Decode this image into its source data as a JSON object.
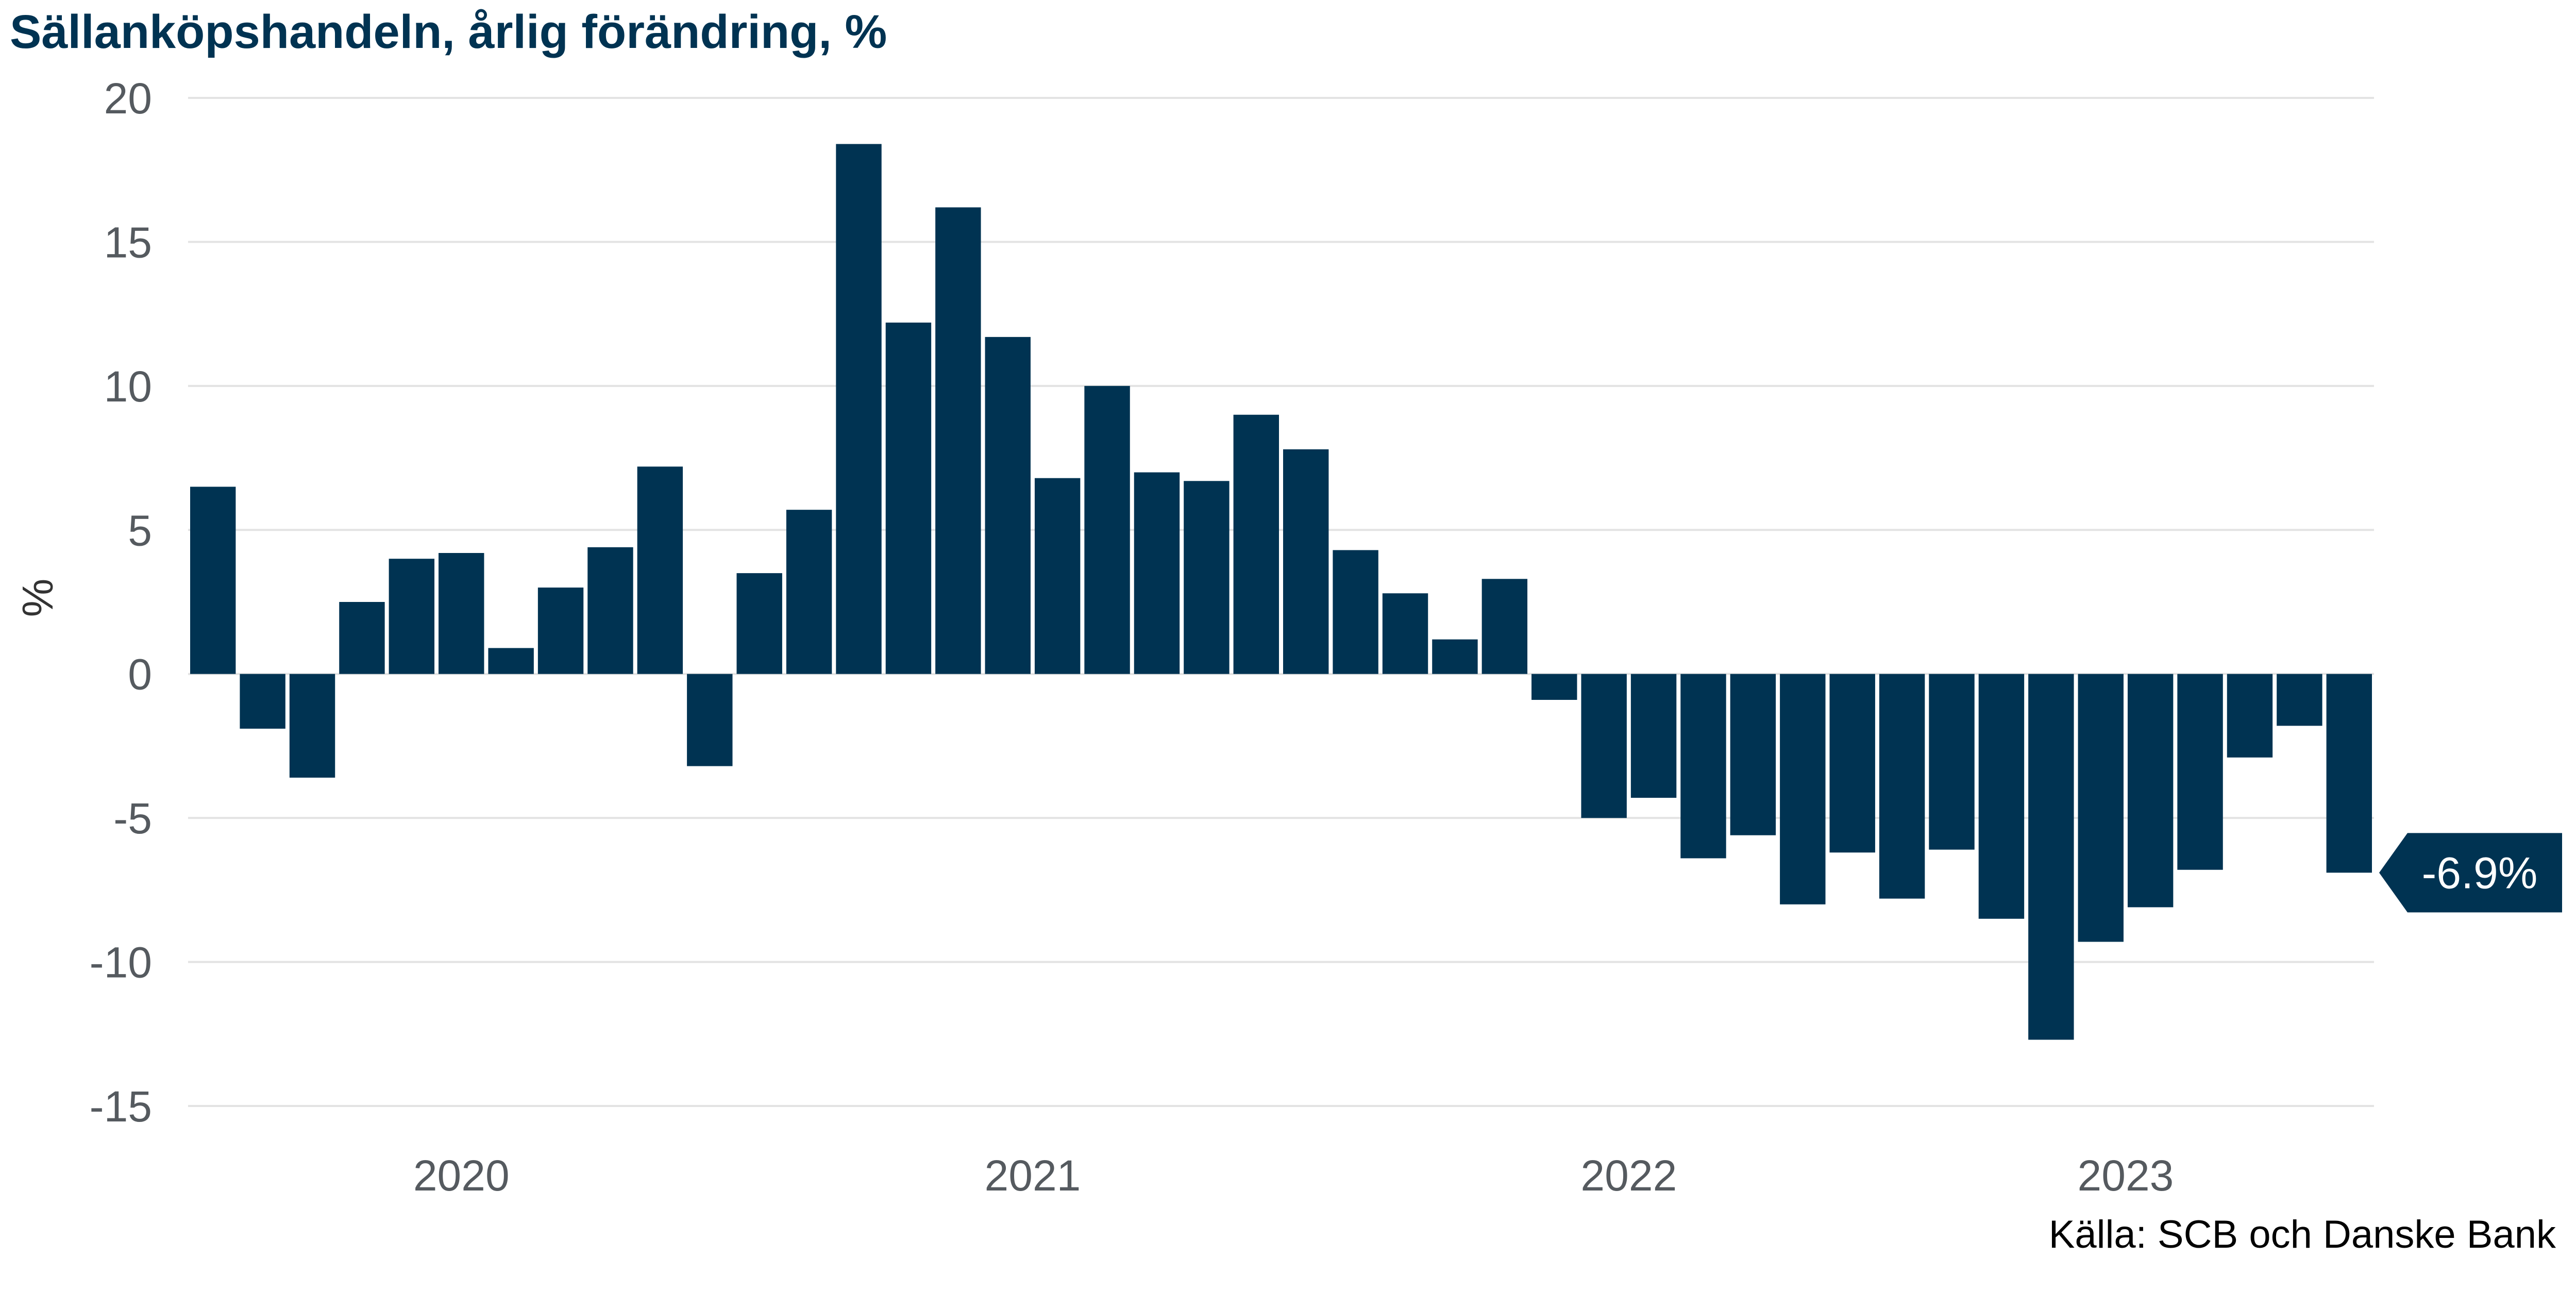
{
  "chart_data": {
    "type": "bar",
    "title": "Sällanköpshandeln, årlig förändring, %",
    "ylabel": "%",
    "xlabel": "",
    "source": "Källa: SCB och Danske Bank",
    "ylim": [
      -15,
      20
    ],
    "yticks": [
      20,
      15,
      10,
      5,
      0,
      -5,
      -10,
      -15
    ],
    "ytick_labels": [
      "20",
      "15",
      "10",
      "5",
      "0",
      "-5",
      "-10",
      "-15"
    ],
    "xtick_labels": [
      {
        "label": "2020",
        "at": 5.5
      },
      {
        "label": "2021",
        "at": 17
      },
      {
        "label": "2022",
        "at": 29
      },
      {
        "label": "2023",
        "at": 39
      }
    ],
    "grid": true,
    "bar_color": "#003352",
    "grid_color": "#e3e3e3",
    "values": [
      6.5,
      -1.9,
      -3.6,
      2.5,
      4.0,
      4.2,
      0.9,
      3.0,
      4.4,
      7.2,
      -3.2,
      3.5,
      5.7,
      18.4,
      12.2,
      16.2,
      11.7,
      6.8,
      10.0,
      7.0,
      6.7,
      9.0,
      7.8,
      4.3,
      2.8,
      1.2,
      3.3,
      -0.9,
      -5.0,
      -4.3,
      -6.4,
      -5.6,
      -8.0,
      -6.2,
      -7.8,
      -6.1,
      -8.5,
      -12.7,
      -9.3,
      -8.1,
      -6.8,
      -2.9,
      -1.8,
      -6.9
    ],
    "annotation": {
      "text": "-6.9%",
      "index": 43
    }
  }
}
